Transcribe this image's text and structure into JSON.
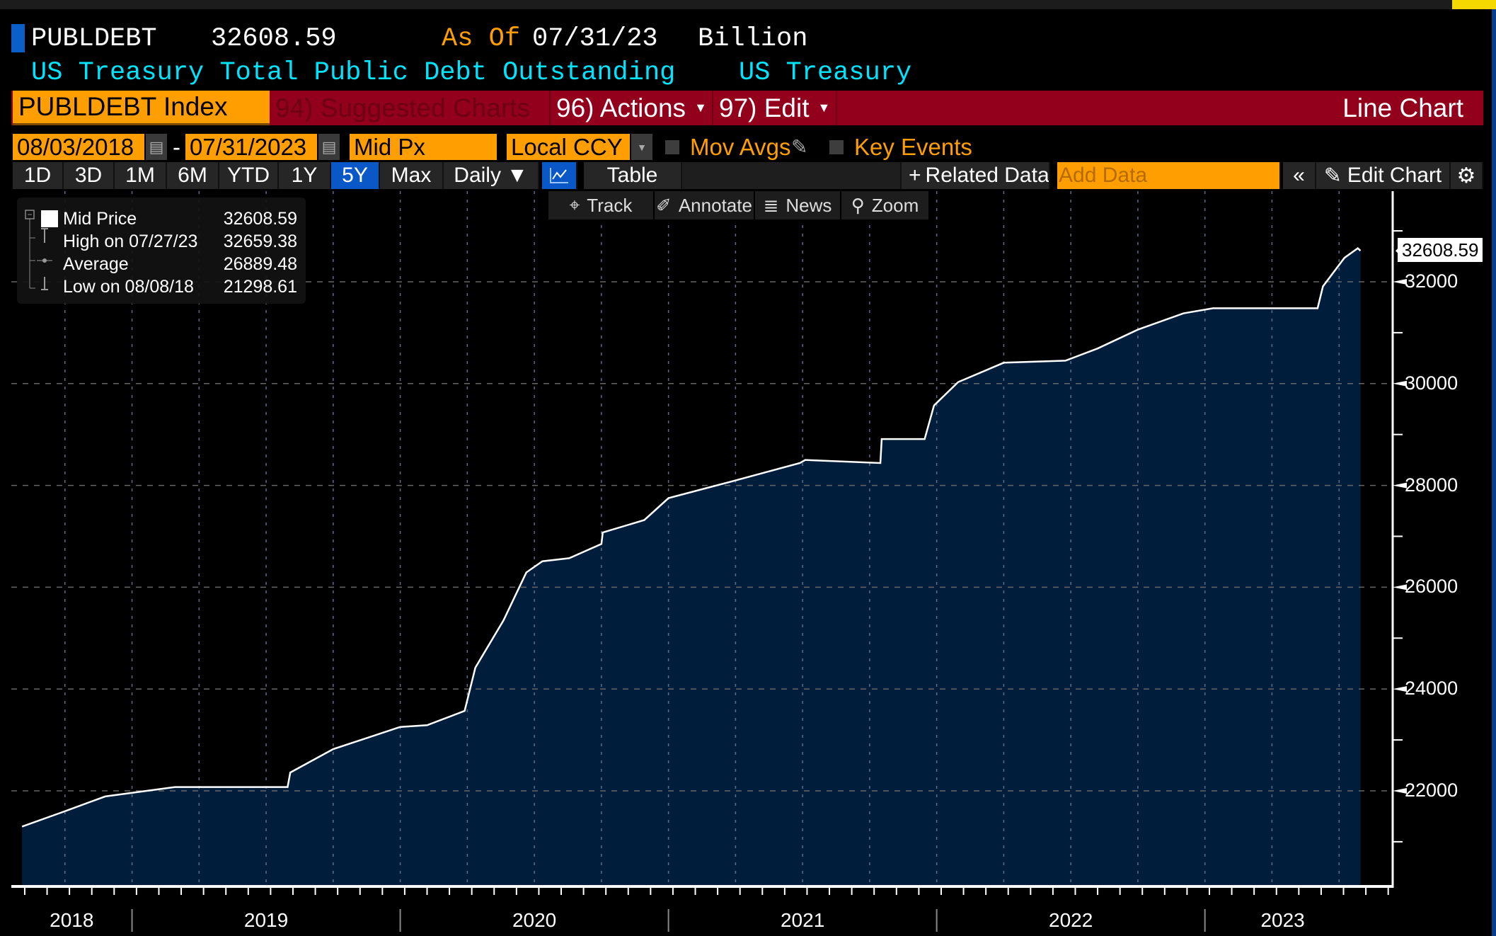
{
  "header": {
    "ticker": "PUBLDEBT",
    "last_value": "32608.59",
    "as_of_label": "As Of",
    "as_of_date": "07/31/23",
    "unit": "Billion",
    "description": "US Treasury Total Public Debt Outstanding",
    "source": "US Treasury"
  },
  "menubar": {
    "security": "PUBLDEBT Index",
    "suggested": "94) Suggested Charts",
    "actions": "96) Actions",
    "edit": "97) Edit",
    "chart_type": "Line Chart"
  },
  "controls": {
    "start_date": "08/03/2018",
    "end_date": "07/31/2023",
    "date_sep": "-",
    "field": "Mid Px",
    "currency": "Local CCY",
    "mov_avgs": "Mov Avgs",
    "key_events": "Key Events"
  },
  "toolbar": {
    "ranges": [
      "1D",
      "3D",
      "1M",
      "6M",
      "YTD",
      "1Y",
      "5Y",
      "Max"
    ],
    "selected_range": "5Y",
    "frequency": "Daily",
    "table": "Table",
    "related_data": "Related Data",
    "add_data_placeholder": "Add Data",
    "edit_chart": "Edit Chart"
  },
  "subtoolbar": {
    "track": "Track",
    "annotate": "Annotate",
    "news": "News",
    "zoom": "Zoom"
  },
  "legend": {
    "series": "Mid Price",
    "series_value": "32608.59",
    "high_label": "High on 07/27/23",
    "high_value": "32659.38",
    "avg_label": "Average",
    "avg_value": "26889.48",
    "low_label": "Low on 08/08/18",
    "low_value": "21298.61"
  },
  "colors": {
    "line": "#ffffff",
    "fill": "#001e3c",
    "accent": "#ff9e00",
    "menubar": "#92001b",
    "cyan": "#00e5ff"
  },
  "chart_data": {
    "type": "area",
    "title": "US Treasury Total Public Debt Outstanding",
    "ylabel": "Billion",
    "xlabel": "",
    "x_unit": "decimal year",
    "xlim": [
      2018.55,
      2023.7
    ],
    "ylim": [
      20150,
      33780
    ],
    "yticks": [
      22000,
      24000,
      26000,
      28000,
      30000,
      32000
    ],
    "ytick_labels": [
      "22000",
      "24000",
      "26000",
      "28000",
      "30000",
      "32000"
    ],
    "xtick_labels": [
      "2018",
      "2019",
      "2020",
      "2021",
      "2022",
      "2023"
    ],
    "year_boundaries": [
      2019,
      2020,
      2021,
      2022,
      2023
    ],
    "last_value_label": "32608.59",
    "grid": true,
    "series": [
      {
        "name": "Mid Price",
        "x": [
          2018.59,
          2018.75,
          2018.9,
          2019.16,
          2019.58,
          2019.59,
          2019.75,
          2020.0,
          2020.1,
          2020.24,
          2020.28,
          2020.385,
          2020.47,
          2020.53,
          2020.63,
          2020.75,
          2020.755,
          2020.91,
          2021.0,
          2021.23,
          2021.49,
          2021.51,
          2021.79,
          2021.795,
          2021.955,
          2021.99,
          2022.08,
          2022.25,
          2022.48,
          2022.6,
          2022.75,
          2022.92,
          2023.03,
          2023.42,
          2023.44,
          2023.52,
          2023.57,
          2023.58
        ],
        "y": [
          21299,
          21600,
          21890,
          22075,
          22075,
          22360,
          22820,
          23255,
          23290,
          23570,
          24420,
          25350,
          26290,
          26510,
          26570,
          26850,
          27075,
          27320,
          27750,
          28070,
          28440,
          28500,
          28440,
          28910,
          28910,
          29570,
          30030,
          30410,
          30450,
          30690,
          31060,
          31380,
          31480,
          31480,
          31910,
          32470,
          32659,
          32609
        ]
      }
    ]
  }
}
